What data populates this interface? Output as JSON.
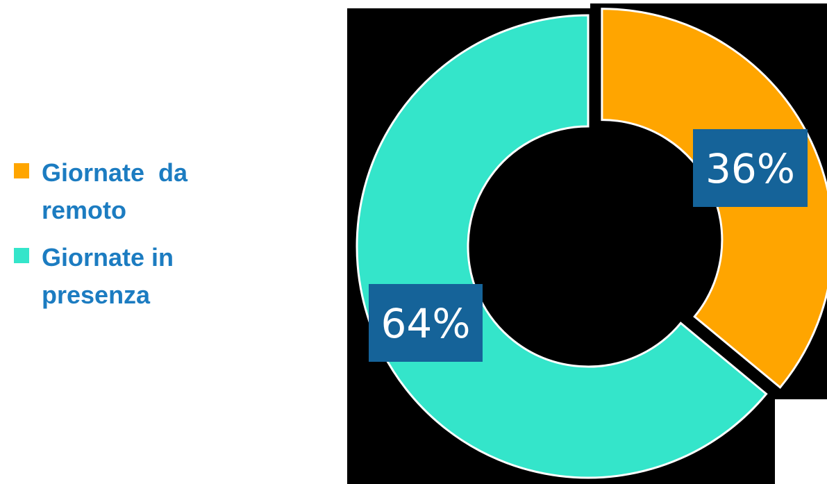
{
  "chart_data": {
    "type": "donut",
    "categories": [
      "Giornate  da remoto",
      "Giornate in presenza"
    ],
    "values": [
      36,
      64
    ],
    "data_labels": [
      "36%",
      "64%"
    ],
    "colors": [
      "#ffa500",
      "#34e5ca"
    ],
    "label_box_color": "#156399",
    "legend_text_color": "#1c7cc1",
    "legend_position": "left",
    "exploded_slice": "Giornate  da remoto"
  },
  "legend": {
    "items": [
      {
        "label": "Giornate  da remoto",
        "color": "#ffa500"
      },
      {
        "label": "Giornate in presenza",
        "color": "#34e5ca"
      }
    ]
  }
}
